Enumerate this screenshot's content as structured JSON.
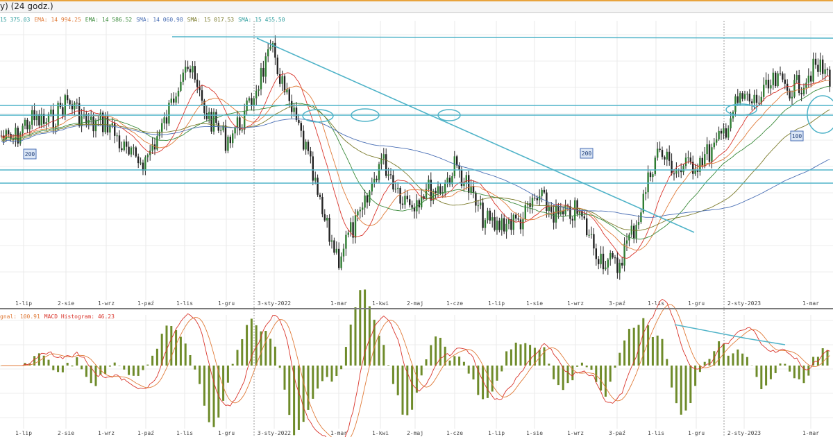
{
  "window": {
    "title": "y) (24 godz.)"
  },
  "indicators": {
    "legend": [
      {
        "label": "",
        "value": "15 375.03",
        "color": "#2e9e9e"
      },
      {
        "label": "EMA:",
        "value": "14 994.25",
        "color": "#e07b39"
      },
      {
        "label": "EMA:",
        "value": "14 586.52",
        "color": "#3a8a3a"
      },
      {
        "label": "SMA:",
        "value": "14 060.98",
        "color": "#4a6fb5"
      },
      {
        "label": "SMA:",
        "value": "15 017.53",
        "color": "#7a7a2a"
      },
      {
        "label": "SMA:",
        "value": "15 455.50",
        "color": "#2e9e9e"
      }
    ],
    "macd_legend": [
      {
        "label": "gnal:",
        "value": "100.91",
        "color": "#e07b39"
      },
      {
        "label": "MACD Histogram:",
        "value": "46.23",
        "color": "#d9342b"
      }
    ]
  },
  "annotations": {
    "ma_badges": [
      "200",
      "200",
      "100"
    ]
  },
  "x_axis": {
    "ticks": [
      "1-lip",
      "2-sie",
      "1-wrz",
      "1-paź",
      "1-lis",
      "1-gru",
      "3-sty-2022",
      "1-mar",
      "1-kwi",
      "2-maj",
      "1-cze",
      "1-lip",
      "1-sie",
      "1-wrz",
      "3-paź",
      "1-lis",
      "1-gru",
      "2-sty-2023",
      "1-mar"
    ]
  },
  "chart_data": [
    {
      "type": "candlestick",
      "xlabel": "",
      "ylabel": "",
      "x_dates": [
        "1-lip",
        "2-sie",
        "1-wrz",
        "1-paź",
        "1-lis",
        "1-gru",
        "3-sty-2022",
        "1-mar",
        "1-kwi",
        "2-maj",
        "1-cze",
        "1-lip",
        "1-sie",
        "1-wrz",
        "3-paź",
        "1-lis",
        "1-gru",
        "2-sty-2023",
        "1-mar"
      ],
      "close_path": [
        {
          "date": "1-lip",
          "v": 0.62
        },
        {
          "date": "2-sie",
          "v": 0.72
        },
        {
          "date": "1-wrz",
          "v": 0.63
        },
        {
          "date": "1-paź",
          "v": 0.46
        },
        {
          "date": "1-lis",
          "v": 0.9
        },
        {
          "date": "1-gru",
          "v": 0.55
        },
        {
          "date": "3-sty-2022",
          "v": 0.95
        },
        {
          "date": "1-mar",
          "v": 0.05
        },
        {
          "date": "1-kwi",
          "v": 0.47
        },
        {
          "date": "2-maj",
          "v": 0.3
        },
        {
          "date": "1-cze",
          "v": 0.45
        },
        {
          "date": "1-lip",
          "v": 0.18
        },
        {
          "date": "1-sie",
          "v": 0.3
        },
        {
          "date": "1-wrz",
          "v": 0.25
        },
        {
          "date": "3-paź",
          "v": 0.0
        },
        {
          "date": "1-lis",
          "v": 0.5
        },
        {
          "date": "1-gru",
          "v": 0.45
        },
        {
          "date": "2-sty-2023",
          "v": 0.75
        },
        {
          "date": "1-mar",
          "v": 0.85
        }
      ],
      "moving_averages": [
        {
          "label": "EMA",
          "value": "14 994.25",
          "color": "#e07b39"
        },
        {
          "label": "EMA",
          "value": "14 586.52",
          "color": "#3a8a3a"
        },
        {
          "label": "SMA",
          "value": "14 060.98",
          "color": "#4a6fb5"
        },
        {
          "label": "SMA",
          "value": "15 017.53",
          "color": "#7a7a2a"
        },
        {
          "label": "SMA",
          "value": "15 455.50",
          "color": "#2e9e9e"
        }
      ],
      "colors": {
        "up": "#2e7d32",
        "down": "#222222",
        "wick": "#222222",
        "trend": "#4fb3c8"
      },
      "grid": true
    },
    {
      "type": "bar+line",
      "title": "MACD",
      "series": [
        {
          "name": "MACD Histogram",
          "last": 46.23,
          "color": "#6e8b2a"
        },
        {
          "name": "gnal",
          "last": 100.91,
          "color": "#e07b39"
        }
      ],
      "grid": true
    }
  ]
}
